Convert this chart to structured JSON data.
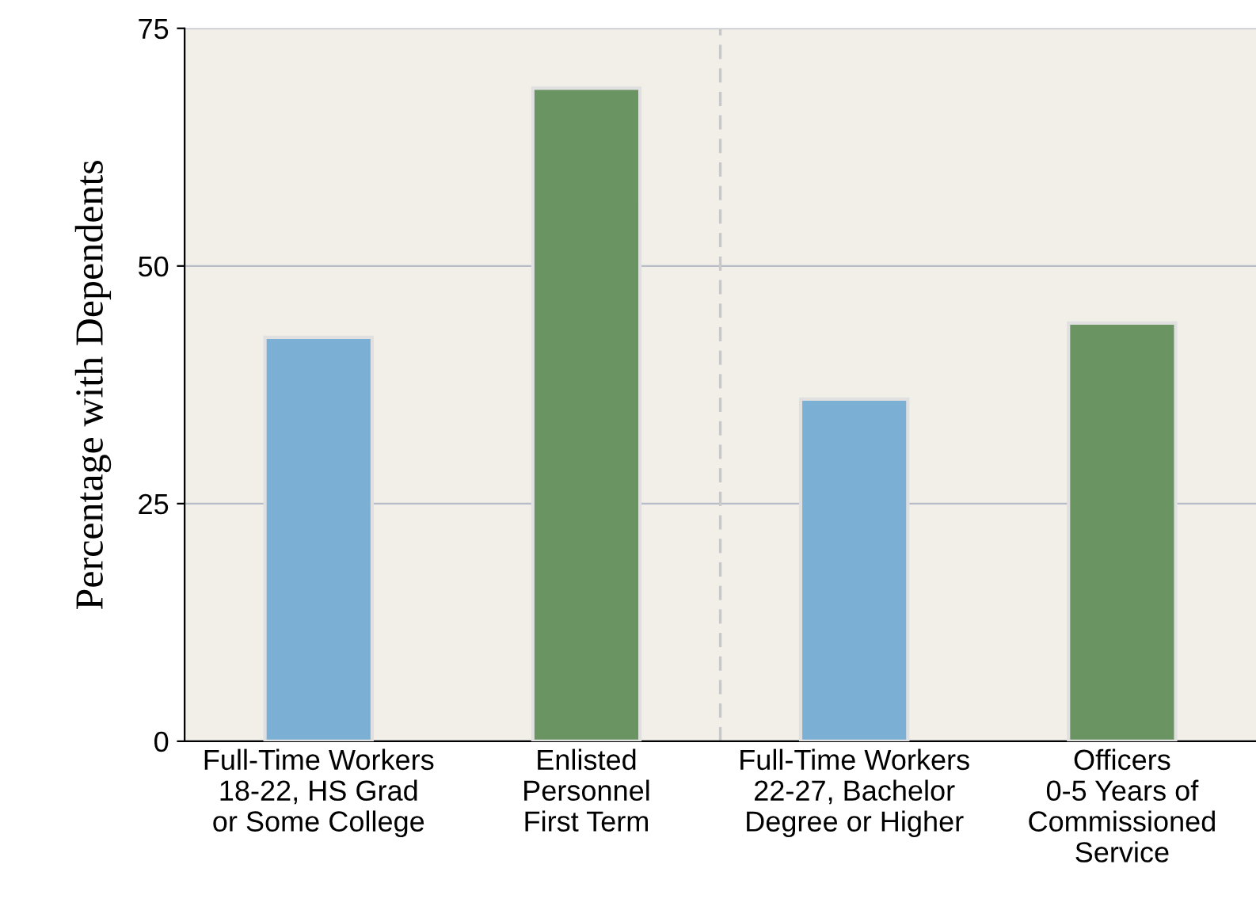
{
  "chart_data": {
    "type": "bar",
    "ylabel": "Percentage with Dependents",
    "categories": [
      "Full-Time Workers\n18-22, HS Grad\nor Some College",
      "Enlisted\nPersonnel\nFirst Term",
      "Full-Time Workers\n22-27, Bachelor\nDegree or Higher",
      "Officers\n0-5 Years of\nCommissioned\nService"
    ],
    "values": [
      42.5,
      68.7,
      36,
      44
    ],
    "colors": [
      "#7bafd4",
      "#6a9462",
      "#7bafd4",
      "#6a9462"
    ],
    "ylim": [
      0,
      75
    ],
    "yticks": [
      0,
      25,
      50,
      75
    ],
    "grid": "y"
  }
}
